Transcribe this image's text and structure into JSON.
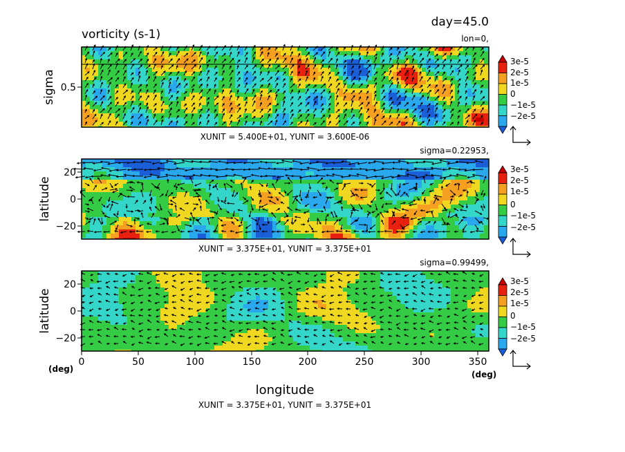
{
  "figure": {
    "title": "vorticity (s-1)",
    "day_label": "day=45.0",
    "xlabel": "longitude",
    "x_unit_left": "(deg)",
    "x_unit_right": "(deg)"
  },
  "colorbar": {
    "ticks": [
      "3e-5",
      "2e-5",
      "1e-5",
      "0",
      "−1e-5",
      "−2e-5"
    ],
    "colors": [
      "#1a5ed8",
      "#2aa8ee",
      "#33d6c8",
      "#33cc44",
      "#f0d820",
      "#f5a020",
      "#e82010",
      "#c80000"
    ]
  },
  "chart_data": [
    {
      "type": "heatmap",
      "subtitle": "lon=0,",
      "ylabel": "sigma",
      "yticks": [
        "0.5"
      ],
      "ylim": [
        0,
        1
      ],
      "xlim": [
        0,
        360
      ],
      "vector_unit": "XUNIT = 5.400E+01, YUNIT = 3.600E-06",
      "grid": false
    },
    {
      "type": "heatmap",
      "subtitle": "sigma=0.22953,",
      "ylabel": "latitude",
      "yticks": [
        "20",
        "0",
        "−20"
      ],
      "ylim": [
        -30,
        30
      ],
      "xlim": [
        0,
        360
      ],
      "vector_unit": "XUNIT = 3.375E+01, YUNIT = 3.375E+01",
      "grid": false
    },
    {
      "type": "heatmap",
      "subtitle": "sigma=0.99499,",
      "ylabel": "latitude",
      "yticks": [
        "20",
        "0",
        "−20"
      ],
      "ylim": [
        -30,
        30
      ],
      "xlim": [
        0,
        360
      ],
      "xticks": [
        "0",
        "50",
        "100",
        "150",
        "200",
        "250",
        "300",
        "350"
      ],
      "vector_unit": "XUNIT = 3.375E+01, YUNIT = 3.375E+01",
      "grid": false
    }
  ]
}
